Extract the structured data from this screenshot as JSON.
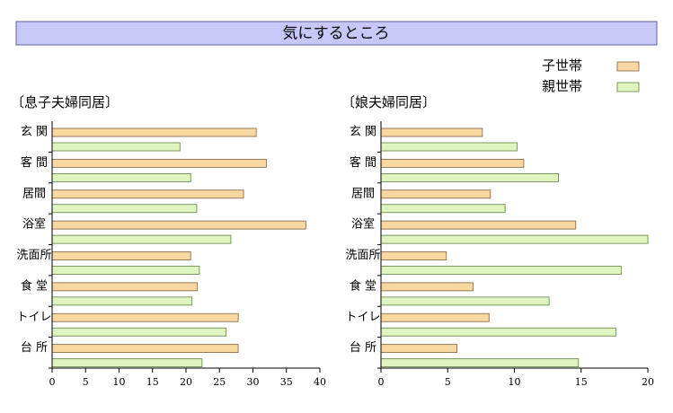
{
  "title": "気にするところ",
  "chart_data": [
    {
      "type": "barh",
      "title": "〔息子夫婦同居〕",
      "categories": [
        "玄 関",
        "客 間",
        "居間",
        "浴室",
        "洗面所",
        "食 堂",
        "トイレ",
        "台 所"
      ],
      "series": [
        {
          "name": "子世帯",
          "color": "#f8d8a0",
          "values": [
            30.5,
            32,
            28.6,
            37.9,
            20.7,
            21.7,
            27.8,
            27.8
          ]
        },
        {
          "name": "親世帯",
          "color": "#e0f4c0",
          "values": [
            19.1,
            20.7,
            21.6,
            26.7,
            22,
            20.9,
            26,
            22.4
          ]
        }
      ],
      "xlim": [
        0,
        40
      ],
      "xticks": [
        0,
        5,
        10,
        15,
        20,
        25,
        30,
        35,
        40
      ]
    },
    {
      "type": "barh",
      "title": "〔娘夫婦同居〕",
      "categories": [
        "玄 関",
        "客 間",
        "居間",
        "浴室",
        "洗面所",
        "食 堂",
        "トイレ",
        "台 所"
      ],
      "series": [
        {
          "name": "子世帯",
          "color": "#f8d8a0",
          "values": [
            7.6,
            10.7,
            8.2,
            14.6,
            4.9,
            6.9,
            8.1,
            5.7
          ]
        },
        {
          "name": "親世帯",
          "color": "#e0f4c0",
          "values": [
            10.2,
            13.3,
            9.3,
            20,
            18,
            12.6,
            17.6,
            14.8
          ]
        }
      ],
      "xlim": [
        0,
        20
      ],
      "xticks": [
        0,
        5,
        10,
        15,
        20
      ]
    }
  ]
}
